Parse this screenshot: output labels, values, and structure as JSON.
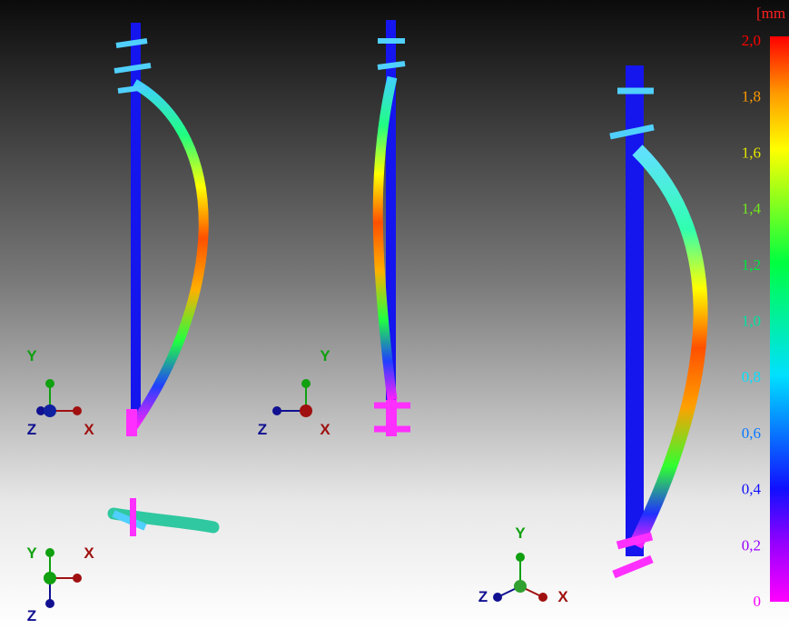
{
  "colorbar": {
    "unit": "[mm",
    "ticks": [
      {
        "value": 2.0,
        "label": "2,0"
      },
      {
        "value": 1.8,
        "label": "1,8"
      },
      {
        "value": 1.6,
        "label": "1,6"
      },
      {
        "value": 1.4,
        "label": "1,4"
      },
      {
        "value": 1.2,
        "label": "1,2"
      },
      {
        "value": 1.0,
        "label": "1,0"
      },
      {
        "value": 0.8,
        "label": "0,8"
      },
      {
        "value": 0.6,
        "label": "0,6"
      },
      {
        "value": 0.4,
        "label": "0,4"
      },
      {
        "value": 0.2,
        "label": "0,2"
      },
      0
    ]
  },
  "triads": [
    {
      "y": "Y",
      "z": "Z",
      "x": "X"
    },
    {
      "y": "Y",
      "z": "Z",
      "x": "X"
    },
    {
      "y": "Y",
      "z": "Z",
      "x": "X"
    },
    {
      "y": "Y",
      "z": "Z",
      "x": "X"
    }
  ]
}
